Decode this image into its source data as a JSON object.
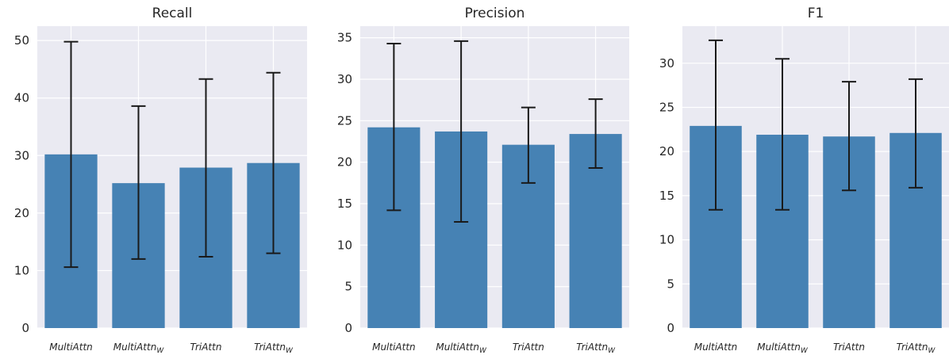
{
  "chart_data": [
    {
      "type": "bar",
      "title": "Recall",
      "xlabel": "",
      "ylabel": "",
      "categories": [
        {
          "main": "MultiAttn",
          "sub": ""
        },
        {
          "main": "MultiAttn",
          "sub": "W"
        },
        {
          "main": "TriAttn",
          "sub": ""
        },
        {
          "main": "TriAttn",
          "sub": "W"
        }
      ],
      "values": [
        30.2,
        25.2,
        27.9,
        28.7
      ],
      "error_low": [
        10.6,
        12.0,
        12.4,
        13.0
      ],
      "error_high": [
        49.8,
        38.6,
        43.3,
        44.4
      ],
      "ylim": [
        0,
        52.5
      ],
      "yticks": [
        0,
        10,
        20,
        30,
        40,
        50
      ],
      "grid": true,
      "color": "#4682b4"
    },
    {
      "type": "bar",
      "title": "Precision",
      "xlabel": "",
      "ylabel": "",
      "categories": [
        {
          "main": "MultiAttn",
          "sub": ""
        },
        {
          "main": "MultiAttn",
          "sub": "W"
        },
        {
          "main": "TriAttn",
          "sub": ""
        },
        {
          "main": "TriAttn",
          "sub": "W"
        }
      ],
      "values": [
        24.2,
        23.7,
        22.1,
        23.4
      ],
      "error_low": [
        14.2,
        12.8,
        17.5,
        19.3
      ],
      "error_high": [
        34.3,
        34.6,
        26.6,
        27.6
      ],
      "ylim": [
        0,
        36.4
      ],
      "yticks": [
        0,
        5,
        10,
        15,
        20,
        25,
        30,
        35
      ],
      "grid": true,
      "color": "#4682b4"
    },
    {
      "type": "bar",
      "title": "F1",
      "xlabel": "",
      "ylabel": "",
      "categories": [
        {
          "main": "MultiAttn",
          "sub": ""
        },
        {
          "main": "MultiAttn",
          "sub": "W"
        },
        {
          "main": "TriAttn",
          "sub": ""
        },
        {
          "main": "TriAttn",
          "sub": "W"
        }
      ],
      "values": [
        22.9,
        21.9,
        21.7,
        22.1
      ],
      "error_low": [
        13.4,
        13.4,
        15.6,
        15.9
      ],
      "error_high": [
        32.6,
        30.5,
        27.9,
        28.2
      ],
      "ylim": [
        0,
        34.2
      ],
      "yticks": [
        0,
        5,
        10,
        15,
        20,
        25,
        30
      ],
      "grid": true,
      "color": "#4682b4"
    }
  ]
}
